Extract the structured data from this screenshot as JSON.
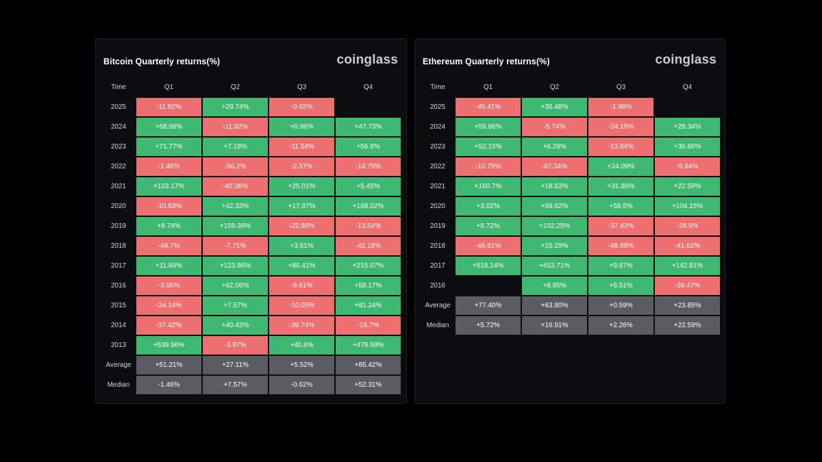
{
  "colors": {
    "positive": "#3fb872",
    "negative": "#ee6f6f",
    "stat": "#5b5c60",
    "background": "#000000",
    "panel": "#0b0c0f"
  },
  "chart_data": [
    {
      "type": "table",
      "title": "Bitcoin Quarterly returns(%)",
      "brand": "coinglass",
      "columns": [
        "Time",
        "Q1",
        "Q2",
        "Q3",
        "Q4"
      ],
      "rows": [
        {
          "label": "2025",
          "values": [
            "-11.82%",
            "+29.74%",
            "-0.62%",
            ""
          ]
        },
        {
          "label": "2024",
          "values": [
            "+68.68%",
            "-11.92%",
            "+0.96%",
            "+47.73%"
          ]
        },
        {
          "label": "2023",
          "values": [
            "+71.77%",
            "+7.19%",
            "-11.54%",
            "+56.9%"
          ]
        },
        {
          "label": "2022",
          "values": [
            "-1.46%",
            "-56.2%",
            "-2.57%",
            "-14.75%"
          ]
        },
        {
          "label": "2021",
          "values": [
            "+103.17%",
            "-40.36%",
            "+25.01%",
            "+5.45%"
          ]
        },
        {
          "label": "2020",
          "values": [
            "-10.83%",
            "+42.33%",
            "+17.97%",
            "+168.02%"
          ]
        },
        {
          "label": "2019",
          "values": [
            "+8.74%",
            "+159.36%",
            "-22.86%",
            "-13.54%"
          ]
        },
        {
          "label": "2018",
          "values": [
            "-49.7%",
            "-7.71%",
            "+3.61%",
            "-42.16%"
          ]
        },
        {
          "label": "2017",
          "values": [
            "+11.89%",
            "+123.86%",
            "+80.41%",
            "+215.07%"
          ]
        },
        {
          "label": "2016",
          "values": [
            "-3.06%",
            "+62.06%",
            "-9.61%",
            "+58.17%"
          ]
        },
        {
          "label": "2015",
          "values": [
            "-24.14%",
            "+7.57%",
            "-10.05%",
            "+81.24%"
          ]
        },
        {
          "label": "2014",
          "values": [
            "-37.42%",
            "+40.43%",
            "-39.74%",
            "-16.7%"
          ]
        },
        {
          "label": "2013",
          "values": [
            "+539.96%",
            "-3.97%",
            "+40.6%",
            "+479.59%"
          ]
        }
      ],
      "stats": [
        {
          "label": "Average",
          "values": [
            "+51.21%",
            "+27.11%",
            "+5.52%",
            "+85.42%"
          ]
        },
        {
          "label": "Median",
          "values": [
            "-1.46%",
            "+7.57%",
            "-0.62%",
            "+52.31%"
          ]
        }
      ]
    },
    {
      "type": "table",
      "title": "Ethereum Quarterly returns(%)",
      "brand": "coinglass",
      "columns": [
        "Time",
        "Q1",
        "Q2",
        "Q3",
        "Q4"
      ],
      "rows": [
        {
          "label": "2025",
          "values": [
            "-45.41%",
            "+36.48%",
            "-1.98%",
            ""
          ]
        },
        {
          "label": "2024",
          "values": [
            "+59.66%",
            "-5.74%",
            "-24.19%",
            "+28.34%"
          ]
        },
        {
          "label": "2023",
          "values": [
            "+52.15%",
            "+6.29%",
            "-13.64%",
            "+36.66%"
          ]
        },
        {
          "label": "2022",
          "values": [
            "-10.75%",
            "-67.34%",
            "+24.09%",
            "-9.94%"
          ]
        },
        {
          "label": "2021",
          "values": [
            "+160.7%",
            "+18.53%",
            "+31.86%",
            "+22.59%"
          ]
        },
        {
          "label": "2020",
          "values": [
            "+3.02%",
            "+69.62%",
            "+59.5%",
            "+104.15%"
          ]
        },
        {
          "label": "2019",
          "values": [
            "+5.72%",
            "+102.25%",
            "-37.43%",
            "-28.9%"
          ]
        },
        {
          "label": "2018",
          "values": [
            "-46.61%",
            "+15.29%",
            "-48.69%",
            "-41.62%"
          ]
        },
        {
          "label": "2017",
          "values": [
            "+518.14%",
            "+453.71%",
            "+9.87%",
            "+142.81%"
          ]
        },
        {
          "label": "2016",
          "values": [
            "",
            "+8.95%",
            "+6.51%",
            "-39.47%"
          ]
        }
      ],
      "stats": [
        {
          "label": "Average",
          "values": [
            "+77.40%",
            "+63.80%",
            "+0.59%",
            "+23.85%"
          ]
        },
        {
          "label": "Median",
          "values": [
            "+5.72%",
            "+16.91%",
            "+2.26%",
            "+22.59%"
          ]
        }
      ]
    }
  ]
}
